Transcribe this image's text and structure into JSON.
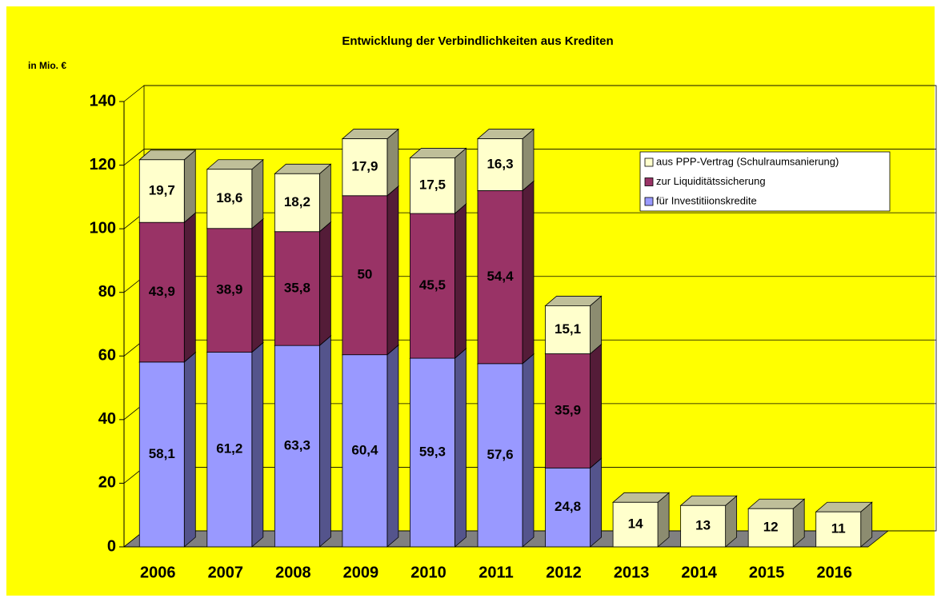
{
  "chart_data": {
    "type": "bar3d-stacked",
    "title": "Entwicklung der Verbindlichkeiten aus Krediten",
    "y_label": "in Mio. €",
    "categories": [
      "2006",
      "2007",
      "2008",
      "2009",
      "2010",
      "2011",
      "2012",
      "2013",
      "2014",
      "2015",
      "2016"
    ],
    "series": [
      {
        "name": "für Investitiionskredite",
        "color": "#9999ff",
        "values": [
          58.1,
          61.2,
          63.3,
          60.4,
          59.3,
          57.6,
          24.8,
          null,
          null,
          null,
          null
        ],
        "value_labels": [
          "58,1",
          "61,2",
          "63,3",
          "60,4",
          "59,3",
          "57,6",
          "24,8",
          null,
          null,
          null,
          null
        ]
      },
      {
        "name": "zur Liquiditätssicherung",
        "color": "#993366",
        "values": [
          43.9,
          38.9,
          35.8,
          50,
          45.5,
          54.4,
          35.9,
          null,
          null,
          null,
          null
        ],
        "value_labels": [
          "43,9",
          "38,9",
          "35,8",
          "50",
          "45,5",
          "54,4",
          "35,9",
          null,
          null,
          null,
          null
        ]
      },
      {
        "name": "aus PPP-Vertrag (Schulraumsanierung)",
        "color": "#ffffcc",
        "values": [
          19.7,
          18.6,
          18.2,
          17.9,
          17.5,
          16.3,
          15.1,
          14,
          13,
          12,
          11
        ],
        "value_labels": [
          "19,7",
          "18,6",
          "18,2",
          "17,9",
          "17,5",
          "16,3",
          "15,1",
          "14",
          "13",
          "12",
          "11"
        ]
      }
    ],
    "ylim": [
      0,
      140
    ],
    "yticks": [
      0,
      20,
      40,
      60,
      80,
      100,
      120,
      140
    ],
    "grid": true
  }
}
